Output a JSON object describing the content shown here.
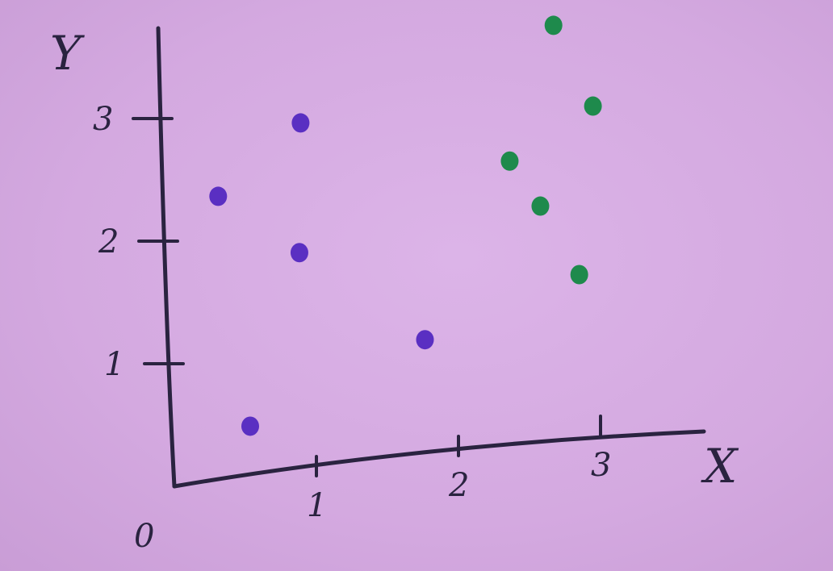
{
  "chart_data": {
    "type": "scatter",
    "title": "",
    "xlabel": "X",
    "ylabel": "Y",
    "origin_label": "0",
    "xlim": [
      0,
      3.5
    ],
    "ylim": [
      0,
      3.5
    ],
    "x_ticks": [
      {
        "value": 1,
        "label": "1"
      },
      {
        "value": 2,
        "label": "2"
      },
      {
        "value": 3,
        "label": "3"
      }
    ],
    "y_ticks": [
      {
        "value": 1,
        "label": "1"
      },
      {
        "value": 2,
        "label": "2"
      },
      {
        "value": 3,
        "label": "3"
      }
    ],
    "grid": false,
    "series": [
      {
        "color": "#5a2fc2",
        "points": [
          {
            "x": 0.4,
            "y": 2.3
          },
          {
            "x": 1.0,
            "y": 2.8
          },
          {
            "x": 0.95,
            "y": 1.75
          },
          {
            "x": 0.55,
            "y": 0.4
          },
          {
            "x": 1.8,
            "y": 0.9
          }
        ]
      },
      {
        "color": "#1e8a4c",
        "points": [
          {
            "x": 2.8,
            "y": 3.3
          },
          {
            "x": 3.05,
            "y": 2.6
          },
          {
            "x": 2.45,
            "y": 2.25
          },
          {
            "x": 2.65,
            "y": 1.85
          },
          {
            "x": 2.9,
            "y": 1.25
          }
        ]
      }
    ]
  }
}
